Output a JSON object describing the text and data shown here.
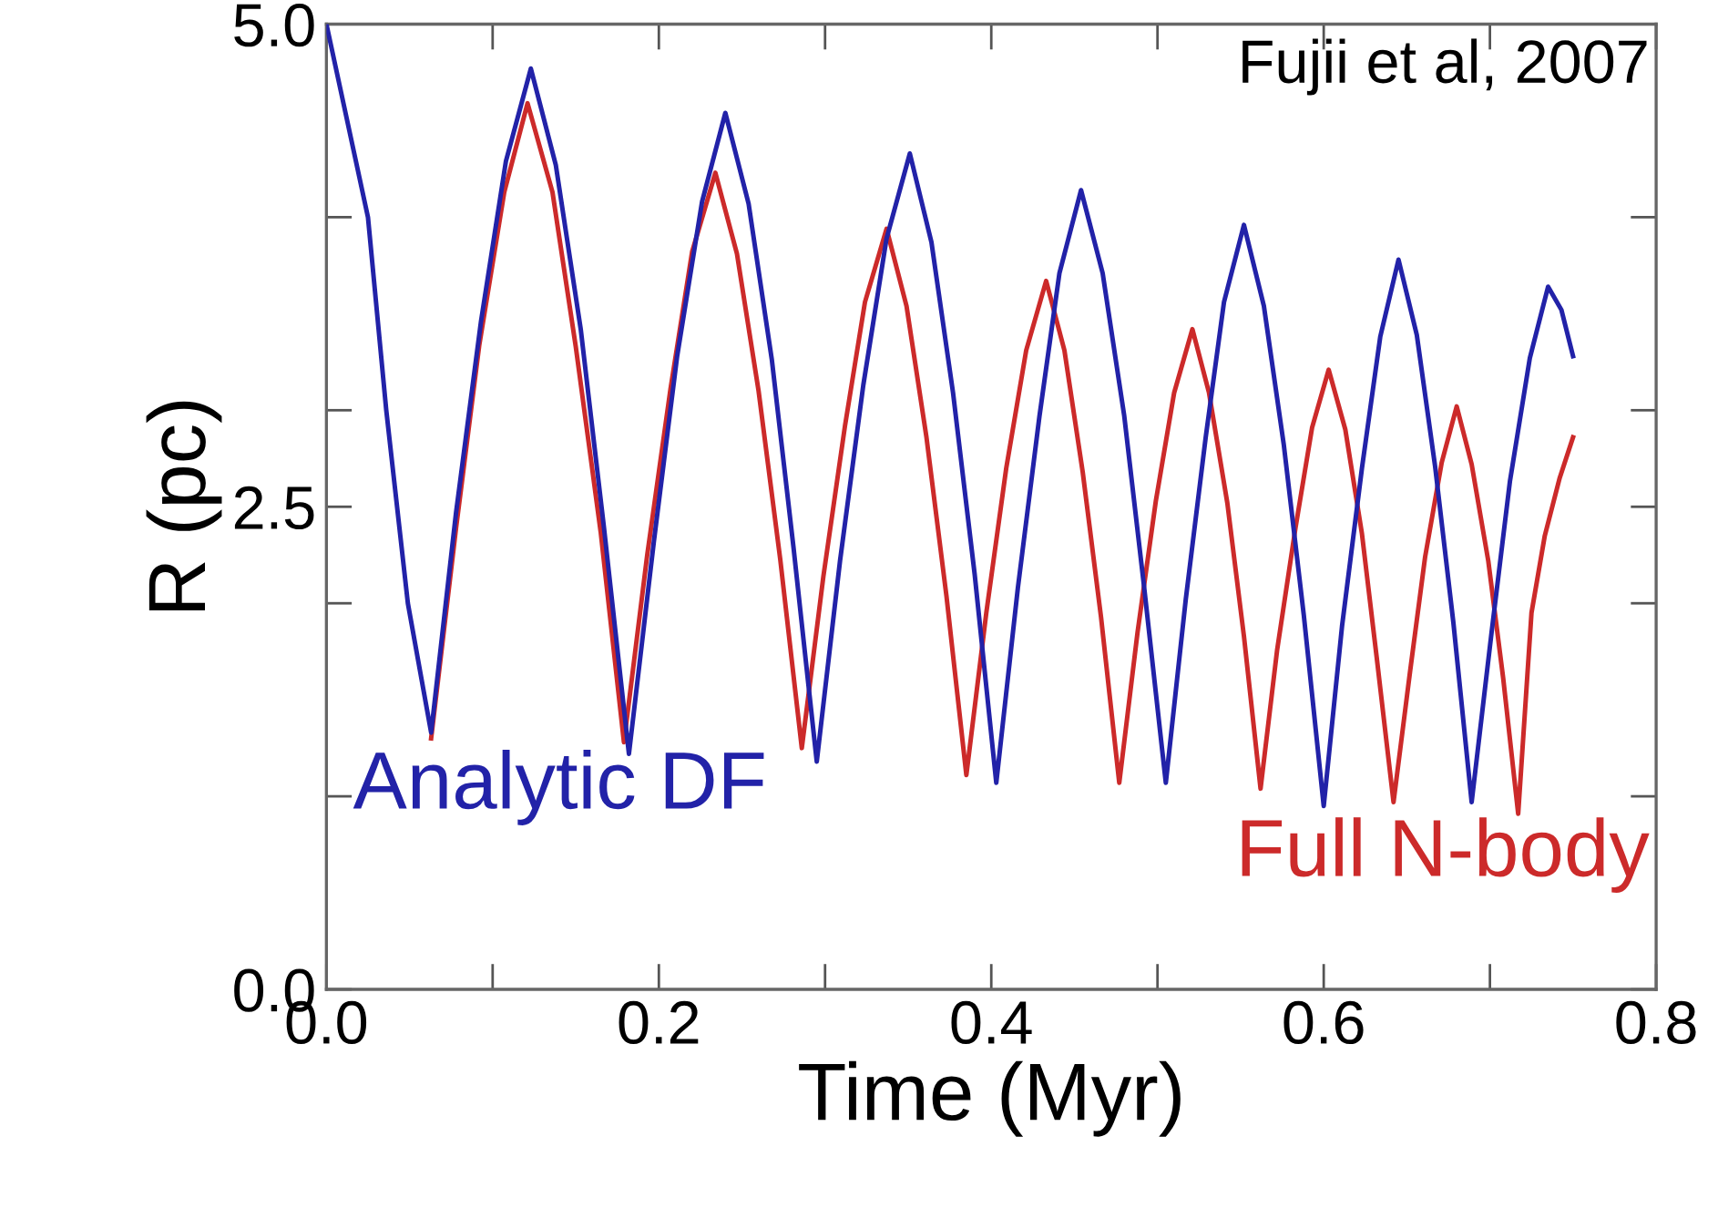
{
  "chart_data": {
    "type": "line",
    "xlabel": "Time (Myr)",
    "ylabel": "R (pc)",
    "xlim": [
      0,
      0.8
    ],
    "ylim": [
      0,
      5.0
    ],
    "xticks": [
      {
        "value": 0,
        "label": "0.0"
      },
      {
        "value": 0.1,
        "label": null
      },
      {
        "value": 0.2,
        "label": "0.2"
      },
      {
        "value": 0.3,
        "label": null
      },
      {
        "value": 0.4,
        "label": "0.4"
      },
      {
        "value": 0.5,
        "label": null
      },
      {
        "value": 0.6,
        "label": "0.6"
      },
      {
        "value": 0.7,
        "label": null
      },
      {
        "value": 0.8,
        "label": "0.8"
      }
    ],
    "yticks": [
      {
        "value": 0,
        "label": "0.0"
      },
      {
        "value": 1,
        "label": null
      },
      {
        "value": 2,
        "label": null
      },
      {
        "value": 2.5,
        "label": "2.5"
      },
      {
        "value": 3,
        "label": null
      },
      {
        "value": 4,
        "label": null
      },
      {
        "value": 5,
        "label": "5.0"
      }
    ],
    "grid": false,
    "legend": false,
    "marker": "none",
    "line_style": "solid",
    "annotations": [
      {
        "text": "Fujii et al, 2007"
      }
    ],
    "series": [
      {
        "name": "Analytic DF",
        "color": "#2222a8",
        "x": [
          0,
          0.025,
          0.036,
          0.049,
          0.063,
          0.078,
          0.093,
          0.108,
          0.123,
          0.138,
          0.153,
          0.167,
          0.182,
          0.197,
          0.211,
          0.226,
          0.24,
          0.254,
          0.268,
          0.281,
          0.295,
          0.309,
          0.323,
          0.337,
          0.351,
          0.364,
          0.377,
          0.39,
          0.403,
          0.416,
          0.429,
          0.441,
          0.454,
          0.467,
          0.48,
          0.492,
          0.505,
          0.517,
          0.529,
          0.54,
          0.552,
          0.564,
          0.576,
          0.588,
          0.6,
          0.611,
          0.623,
          0.634,
          0.645,
          0.656,
          0.667,
          0.678,
          0.689,
          0.701,
          0.712,
          0.724,
          0.735,
          0.743,
          0.75
        ],
        "values": [
          5.0,
          4.0,
          3.0,
          2.0,
          1.33,
          2.47,
          3.46,
          4.29,
          4.77,
          4.27,
          3.42,
          2.39,
          1.22,
          2.32,
          3.28,
          4.08,
          4.54,
          4.07,
          3.26,
          2.29,
          1.18,
          2.22,
          3.13,
          3.89,
          4.33,
          3.87,
          3.09,
          2.15,
          1.07,
          2.08,
          2.97,
          3.71,
          4.14,
          3.71,
          2.97,
          2.08,
          1.07,
          2.02,
          2.86,
          3.56,
          3.96,
          3.54,
          2.82,
          1.94,
          0.95,
          1.88,
          2.7,
          3.38,
          3.78,
          3.39,
          2.71,
          1.9,
          0.97,
          1.85,
          2.63,
          3.27,
          3.64,
          3.52,
          3.28
        ]
      },
      {
        "name": "Full N-body",
        "color": "#cc2a2a",
        "x": [
          0.063,
          0.078,
          0.092,
          0.107,
          0.121,
          0.136,
          0.15,
          0.165,
          0.179,
          0.193,
          0.207,
          0.22,
          0.234,
          0.247,
          0.26,
          0.273,
          0.286,
          0.299,
          0.312,
          0.324,
          0.337,
          0.349,
          0.361,
          0.373,
          0.385,
          0.397,
          0.409,
          0.421,
          0.433,
          0.444,
          0.455,
          0.466,
          0.477,
          0.488,
          0.499,
          0.51,
          0.521,
          0.531,
          0.542,
          0.552,
          0.562,
          0.572,
          0.583,
          0.593,
          0.603,
          0.613,
          0.623,
          0.632,
          0.642,
          0.652,
          0.661,
          0.671,
          0.68,
          0.689,
          0.699,
          0.708,
          0.717,
          0.725,
          0.733,
          0.742,
          0.75
        ],
        "values": [
          1.3,
          2.39,
          3.34,
          4.13,
          4.59,
          4.13,
          3.33,
          2.37,
          1.28,
          2.25,
          3.11,
          3.82,
          4.23,
          3.81,
          3.1,
          2.23,
          1.25,
          2.14,
          2.92,
          3.56,
          3.94,
          3.54,
          2.86,
          2.04,
          1.11,
          1.95,
          2.7,
          3.31,
          3.67,
          3.31,
          2.68,
          1.93,
          1.07,
          1.85,
          2.53,
          3.09,
          3.42,
          3.09,
          2.52,
          1.83,
          1.04,
          1.76,
          2.39,
          2.91,
          3.21,
          2.9,
          2.36,
          1.71,
          0.97,
          1.65,
          2.24,
          2.73,
          3.02,
          2.72,
          2.22,
          1.61,
          0.91,
          1.95,
          2.35,
          2.65,
          2.86
        ]
      }
    ]
  }
}
